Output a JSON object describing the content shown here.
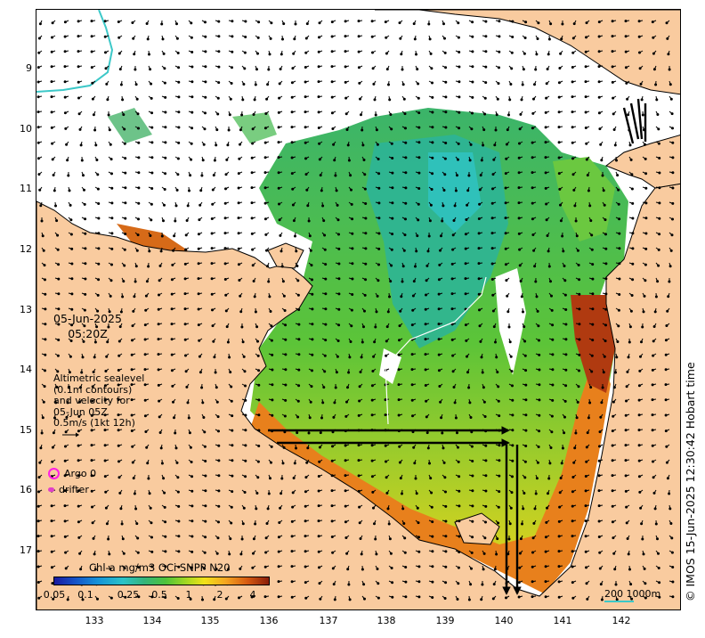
{
  "map": {
    "date": "05-Jun-2025",
    "time": "05:20Z",
    "x_ticks": [
      "133",
      "134",
      "135",
      "136",
      "137",
      "138",
      "139",
      "140",
      "141",
      "142"
    ],
    "y_ticks": [
      "9",
      "10",
      "11",
      "12",
      "13",
      "14",
      "15",
      "16",
      "17"
    ],
    "altimetry_legend": [
      "Altimetric sealevel",
      "(0.1m contours)",
      "and velocity for",
      "05-Jun 05Z",
      "0.5m/s (1kt 12h)"
    ],
    "argo_label": "Argo 0",
    "drifter_label": "drifter",
    "colorbar_title": "Chl-a mg/m3 OCi SNPP N20",
    "colorbar_ticks": [
      "0.05",
      "0.1",
      "0.25",
      "0.5",
      "1",
      "2",
      "4"
    ],
    "scale_label": "200  1000m",
    "credit": "© IMOS 15-Jun-2025 12:30:42 Hobart time",
    "colors": {
      "land": "#f9cb9f",
      "coast": "#000000",
      "argo": "#ff1ee6",
      "drifter": "#e040c8",
      "isobath": "#3cc8c8"
    }
  }
}
